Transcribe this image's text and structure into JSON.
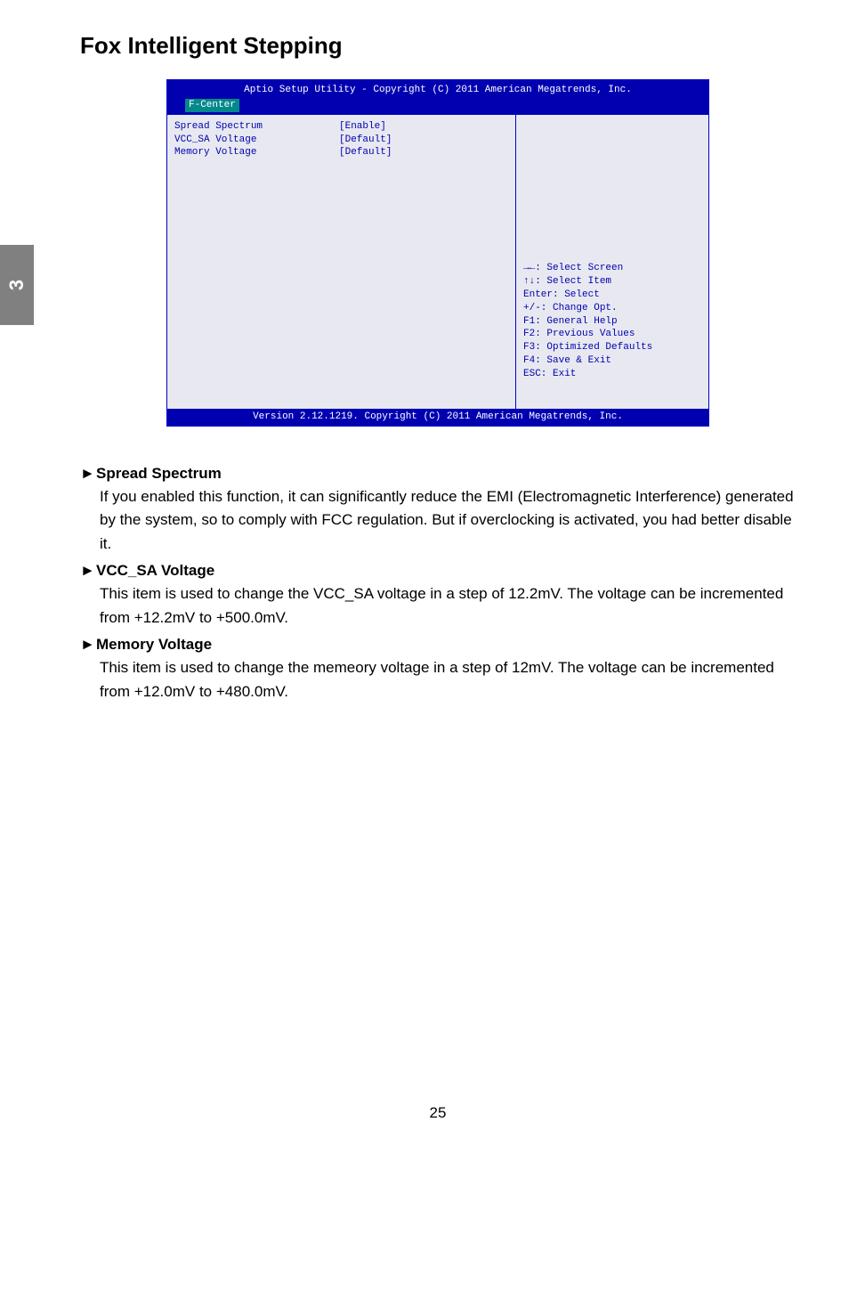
{
  "page": {
    "heading": "Fox Intelligent Stepping",
    "sidetab": "3",
    "pagenum": "25"
  },
  "bios": {
    "top_text": "Aptio Setup Utility - Copyright (C) 2011 American Megatrends, Inc.",
    "tab": "F-Center",
    "rows": [
      {
        "label": "Spread Spectrum",
        "value": "[Enable]"
      },
      {
        "label": "VCC_SA Voltage",
        "value": "[Default]"
      },
      {
        "label": "Memory Voltage",
        "value": "[Default]"
      }
    ],
    "help": "→←: Select Screen\n↑↓: Select Item\nEnter: Select\n+/-: Change Opt.\nF1: General Help\nF2: Previous Values\nF3: Optimized Defaults\nF4: Save & Exit\nESC: Exit",
    "footer": "Version 2.12.1219. Copyright (C) 2011 American Megatrends, Inc.",
    "colors": {
      "header_bg": "#0000b0",
      "header_fg": "#ffffff",
      "body_bg": "#e8e9f0",
      "body_fg": "#0000b0",
      "tab_bg": "#05888b"
    }
  },
  "sections": [
    {
      "title": "Spread Spectrum",
      "body": "If you enabled this function, it can significantly reduce the EMI (Electromagnetic Interference) generated by the system, so to comply with FCC regulation. But if overclocking is activated, you had better disable it."
    },
    {
      "title": "VCC_SA Voltage",
      "body": "This item is used to change the VCC_SA voltage in a step of 12.2mV. The voltage can be incremented from +12.2mV to +500.0mV."
    },
    {
      "title": "Memory Voltage",
      "body": "This item is used to change the memeory voltage in a step of 12mV. The voltage can be incremented from +12.0mV to +480.0mV."
    }
  ]
}
